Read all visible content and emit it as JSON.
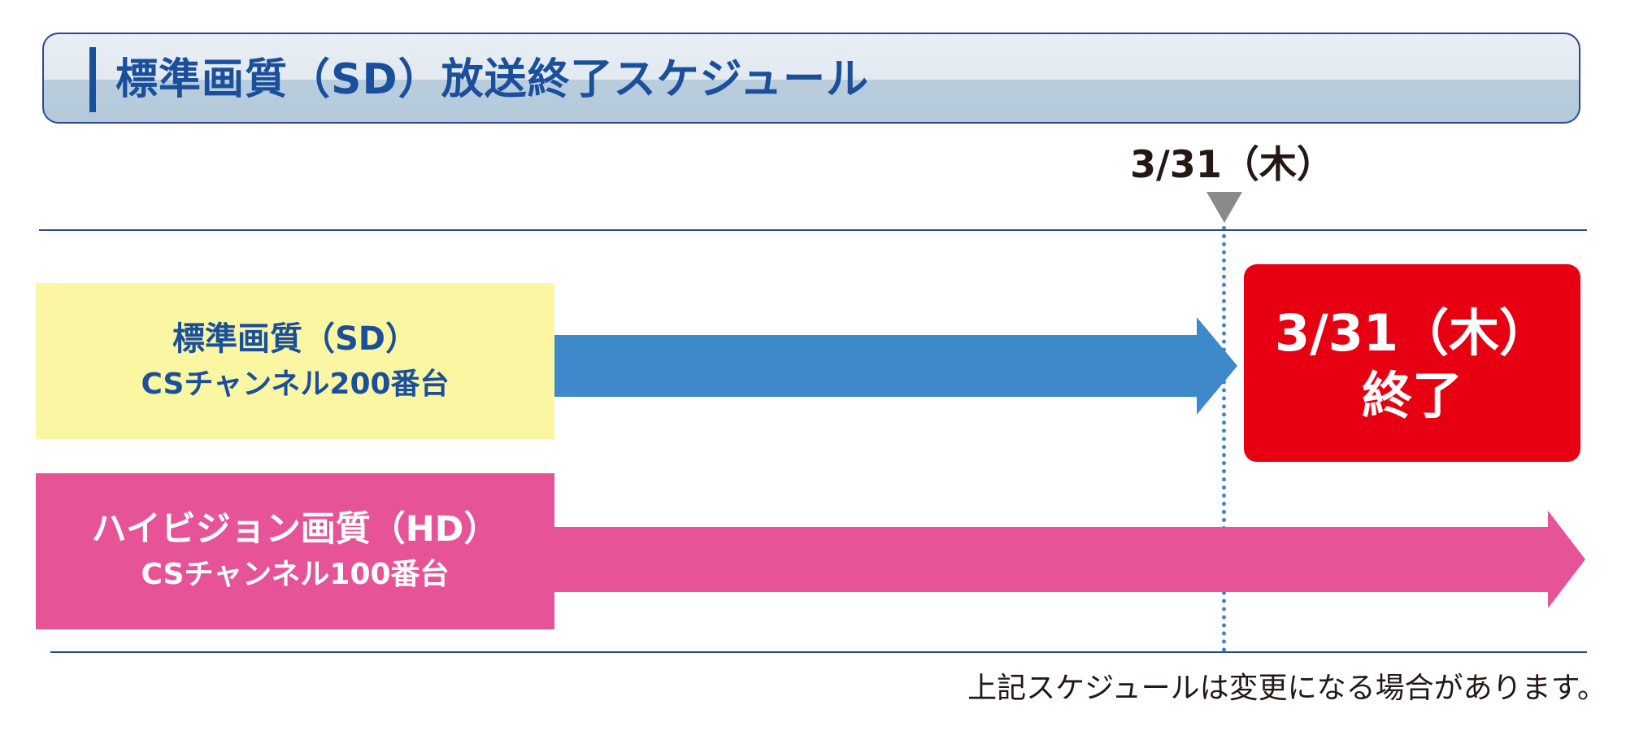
{
  "header": {
    "title": "標準画質（SD）放送終了スケジュール"
  },
  "timeline": {
    "date_label": "3/31（木）"
  },
  "sd": {
    "line1": "標準画質（SD）",
    "line2": "CSチャンネル200番台",
    "color": "#3d89c9",
    "box_color": "#fbf6a2"
  },
  "hd": {
    "line1": "ハイビジョン画質（HD）",
    "line2": "CSチャンネル100番台",
    "color": "#e75397"
  },
  "end_notice": {
    "date": "3/31（木）",
    "status": "終了",
    "color": "#e60012"
  },
  "note": "上記スケジュールは変更になる場合があります。"
}
